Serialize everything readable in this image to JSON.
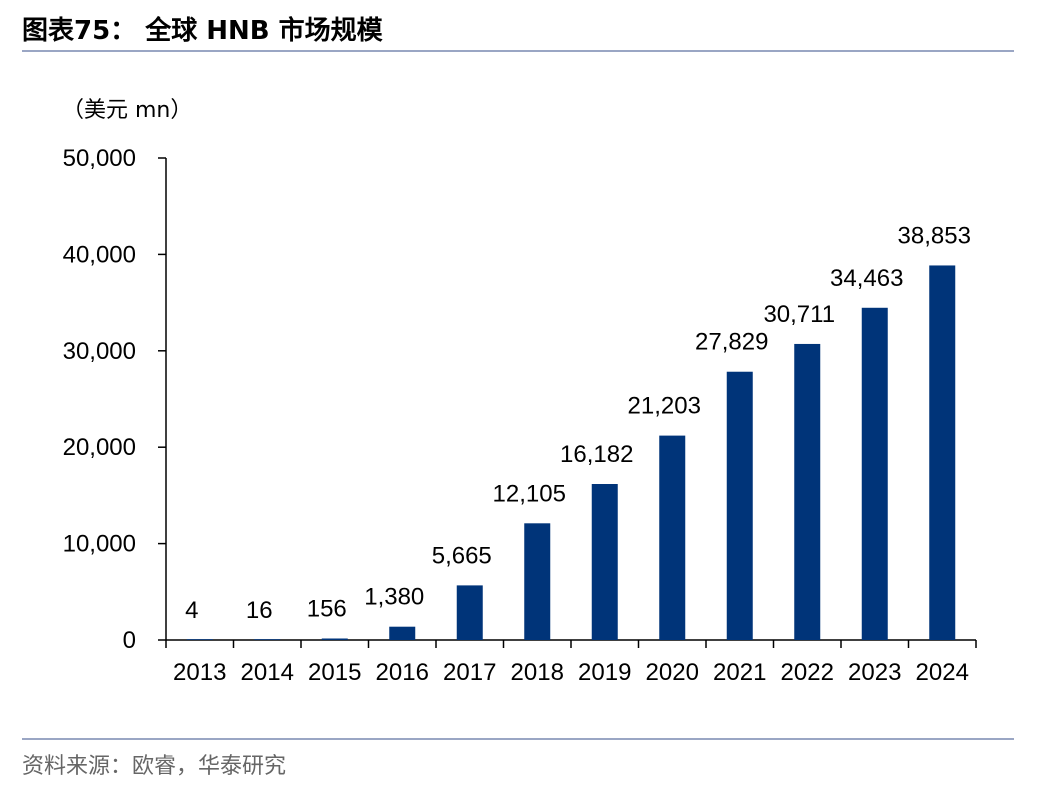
{
  "header": {
    "title": "图表75：  全球 HNB 市场规模"
  },
  "unit_label": "（美元 mn）",
  "footer": {
    "source": "资料来源：欧睿，华泰研究"
  },
  "colors": {
    "bar": "#003479",
    "rule": "#9aa6c4",
    "axis": "#000000"
  },
  "chart_data": {
    "type": "bar",
    "title": "全球 HNB 市场规模",
    "ylabel": "（美元 mn）",
    "xlabel": "",
    "ylim": [
      0,
      50000
    ],
    "yticks": [
      0,
      10000,
      20000,
      30000,
      40000,
      50000
    ],
    "ytick_labels": [
      "0",
      "10,000",
      "20,000",
      "30,000",
      "40,000",
      "50,000"
    ],
    "categories": [
      "2013",
      "2014",
      "2015",
      "2016",
      "2017",
      "2018",
      "2019",
      "2020",
      "2021",
      "2022",
      "2023",
      "2024"
    ],
    "values": [
      4,
      16,
      156,
      1380,
      5665,
      12105,
      16182,
      21203,
      27829,
      30711,
      34463,
      38853
    ],
    "value_labels": [
      "4",
      "16",
      "156",
      "1,380",
      "5,665",
      "12,105",
      "16,182",
      "21,203",
      "27,829",
      "30,711",
      "34,463",
      "38,853"
    ],
    "grid": false,
    "legend": "none"
  }
}
